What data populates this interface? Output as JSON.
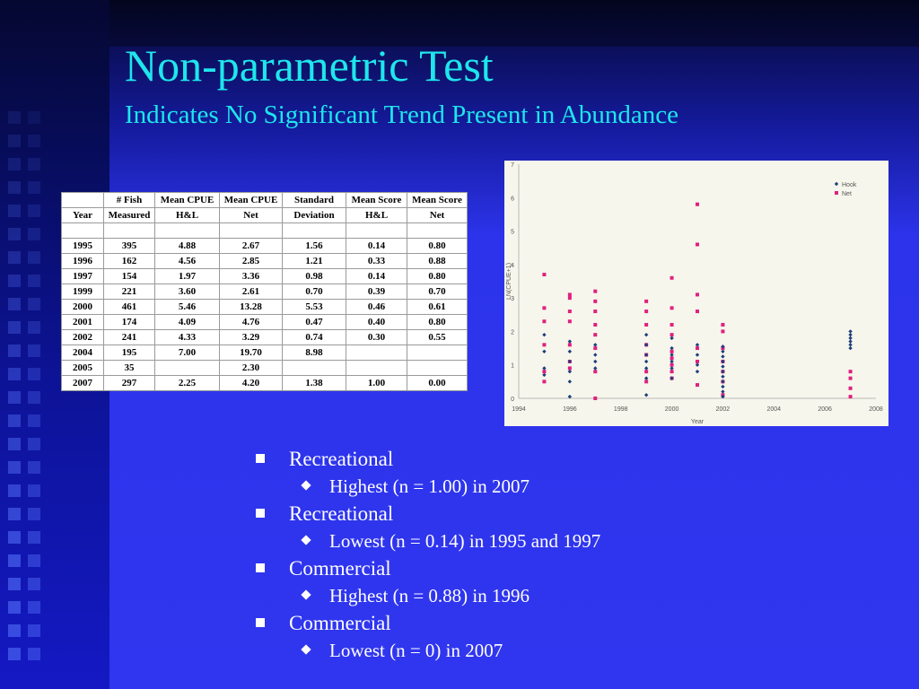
{
  "slide": {
    "title": "Non-parametric Test",
    "subtitle": "Indicates No Significant Trend Present in Abundance",
    "colors": {
      "background": "#3036ef",
      "title": "#1ee6ec",
      "text": "#ffffff",
      "hook": "#1c3f7a",
      "net": "#e0207e"
    }
  },
  "table": {
    "header1": [
      "",
      "# Fish",
      "Mean CPUE",
      "Mean CPUE",
      "Standard",
      "Mean Score",
      "Mean Score"
    ],
    "header2": [
      "Year",
      "Measured",
      "H&L",
      "Net",
      "Deviation",
      "H&L",
      "Net"
    ],
    "rows": [
      [
        "1995",
        "395",
        "4.88",
        "2.67",
        "1.56",
        "0.14",
        "0.80"
      ],
      [
        "1996",
        "162",
        "4.56",
        "2.85",
        "1.21",
        "0.33",
        "0.88"
      ],
      [
        "1997",
        "154",
        "1.97",
        "3.36",
        "0.98",
        "0.14",
        "0.80"
      ],
      [
        "1999",
        "221",
        "3.60",
        "2.61",
        "0.70",
        "0.39",
        "0.70"
      ],
      [
        "2000",
        "461",
        "5.46",
        "13.28",
        "5.53",
        "0.46",
        "0.61"
      ],
      [
        "2001",
        "174",
        "4.09",
        "4.76",
        "0.47",
        "0.40",
        "0.80"
      ],
      [
        "2002",
        "241",
        "4.33",
        "3.29",
        "0.74",
        "0.30",
        "0.55"
      ],
      [
        "2004",
        "195",
        "7.00",
        "19.70",
        "8.98",
        "",
        ""
      ],
      [
        "2005",
        "35",
        "",
        "2.30",
        "",
        "",
        ""
      ],
      [
        "2007",
        "297",
        "2.25",
        "4.20",
        "1.38",
        "1.00",
        "0.00"
      ]
    ]
  },
  "chart_data": {
    "type": "scatter",
    "xlabel": "Year",
    "ylabel": "LN(CPUE+1)",
    "xlim": [
      1994,
      2008
    ],
    "ylim": [
      0,
      7
    ],
    "x_ticks": [
      "1994",
      "1996",
      "1998",
      "2000",
      "2002",
      "2004",
      "2006",
      "2008"
    ],
    "y_ticks": [
      "0",
      "1",
      "2",
      "3",
      "4",
      "5",
      "6",
      "7"
    ],
    "legend_position": "top-right",
    "series": [
      {
        "name": "Hook",
        "color": "#1c3f7a",
        "points": [
          [
            1995,
            0.7
          ],
          [
            1995,
            0.9
          ],
          [
            1995,
            1.4
          ],
          [
            1995,
            1.9
          ],
          [
            1996,
            0.05
          ],
          [
            1996,
            0.5
          ],
          [
            1996,
            0.8
          ],
          [
            1996,
            1.1
          ],
          [
            1996,
            1.4
          ],
          [
            1996,
            1.7
          ],
          [
            1997,
            0.9
          ],
          [
            1997,
            1.1
          ],
          [
            1997,
            1.3
          ],
          [
            1997,
            1.6
          ],
          [
            1999,
            0.1
          ],
          [
            1999,
            0.6
          ],
          [
            1999,
            0.9
          ],
          [
            1999,
            1.1
          ],
          [
            1999,
            1.3
          ],
          [
            1999,
            1.6
          ],
          [
            1999,
            1.9
          ],
          [
            2000,
            0.6
          ],
          [
            2000,
            0.9
          ],
          [
            2000,
            1.1
          ],
          [
            2000,
            1.3
          ],
          [
            2000,
            1.5
          ],
          [
            2000,
            1.8
          ],
          [
            2001,
            0.8
          ],
          [
            2001,
            1.0
          ],
          [
            2001,
            1.3
          ],
          [
            2001,
            1.6
          ],
          [
            2002,
            0.05
          ],
          [
            2002,
            0.2
          ],
          [
            2002,
            0.35
          ],
          [
            2002,
            0.5
          ],
          [
            2002,
            0.65
          ],
          [
            2002,
            0.8
          ],
          [
            2002,
            0.95
          ],
          [
            2002,
            1.1
          ],
          [
            2002,
            1.25
          ],
          [
            2002,
            1.4
          ],
          [
            2002,
            1.55
          ],
          [
            2007,
            1.5
          ],
          [
            2007,
            1.6
          ],
          [
            2007,
            1.7
          ],
          [
            2007,
            1.8
          ],
          [
            2007,
            1.9
          ],
          [
            2007,
            2.0
          ]
        ]
      },
      {
        "name": "Net",
        "color": "#e0207e",
        "points": [
          [
            1995,
            0.5
          ],
          [
            1995,
            0.8
          ],
          [
            1995,
            1.6
          ],
          [
            1995,
            2.3
          ],
          [
            1995,
            2.7
          ],
          [
            1995,
            3.7
          ],
          [
            1996,
            0.9
          ],
          [
            1996,
            1.1
          ],
          [
            1996,
            1.6
          ],
          [
            1996,
            2.3
          ],
          [
            1996,
            2.6
          ],
          [
            1996,
            3.0
          ],
          [
            1996,
            3.1
          ],
          [
            1997,
            0.0
          ],
          [
            1997,
            0.8
          ],
          [
            1997,
            1.5
          ],
          [
            1997,
            1.9
          ],
          [
            1997,
            2.2
          ],
          [
            1997,
            2.6
          ],
          [
            1997,
            2.9
          ],
          [
            1997,
            3.2
          ],
          [
            1999,
            0.5
          ],
          [
            1999,
            0.8
          ],
          [
            1999,
            1.3
          ],
          [
            1999,
            1.6
          ],
          [
            1999,
            2.2
          ],
          [
            1999,
            2.6
          ],
          [
            1999,
            2.9
          ],
          [
            2000,
            0.6
          ],
          [
            2000,
            0.8
          ],
          [
            2000,
            1.0
          ],
          [
            2000,
            1.2
          ],
          [
            2000,
            1.4
          ],
          [
            2000,
            1.9
          ],
          [
            2000,
            2.2
          ],
          [
            2000,
            2.7
          ],
          [
            2000,
            3.6
          ],
          [
            2001,
            0.4
          ],
          [
            2001,
            1.1
          ],
          [
            2001,
            1.5
          ],
          [
            2001,
            2.6
          ],
          [
            2001,
            3.1
          ],
          [
            2001,
            4.6
          ],
          [
            2001,
            5.8
          ],
          [
            2002,
            0.1
          ],
          [
            2002,
            0.5
          ],
          [
            2002,
            0.8
          ],
          [
            2002,
            1.1
          ],
          [
            2002,
            1.5
          ],
          [
            2002,
            2.0
          ],
          [
            2002,
            2.2
          ],
          [
            2007,
            0.05
          ],
          [
            2007,
            0.3
          ],
          [
            2007,
            0.6
          ],
          [
            2007,
            0.8
          ]
        ]
      }
    ]
  },
  "bullets": [
    {
      "level": 1,
      "text": "Recreational"
    },
    {
      "level": 2,
      "text": "Highest (n = 1.00) in 2007"
    },
    {
      "level": 1,
      "text": "Recreational"
    },
    {
      "level": 2,
      "text": "Lowest (n = 0.14) in 1995 and 1997"
    },
    {
      "level": 1,
      "text": "Commercial"
    },
    {
      "level": 2,
      "text": "Highest (n = 0.88) in 1996"
    },
    {
      "level": 1,
      "text": "Commercial"
    },
    {
      "level": 2,
      "text": "Lowest (n = 0) in 2007"
    }
  ]
}
